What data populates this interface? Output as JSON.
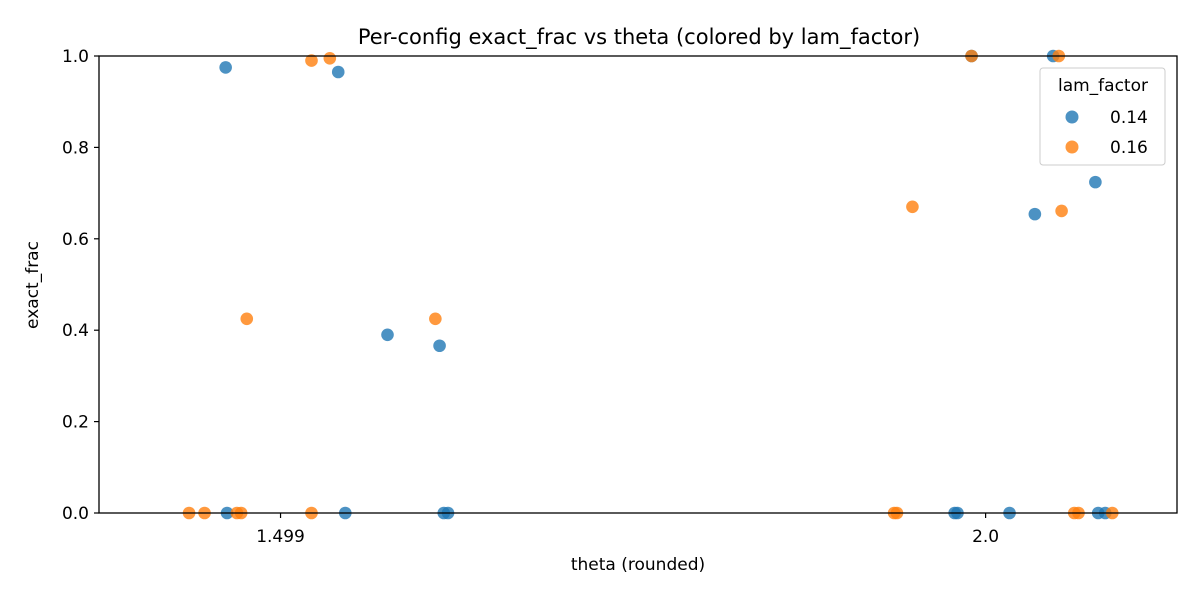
{
  "chart_data": {
    "type": "scatter",
    "title": "Per-config exact_frac vs theta (colored by lam_factor)",
    "xlabel": "theta (rounded)",
    "ylabel": "exact_frac",
    "x_tick_labels": [
      "1.499",
      "2.0"
    ],
    "y_tick_labels": [
      "0.0",
      "0.2",
      "0.4",
      "0.6",
      "0.8",
      "1.0"
    ],
    "ylim": [
      0,
      1
    ],
    "grid": false,
    "legend": {
      "title": "lam_factor",
      "location": "upper right"
    },
    "series": [
      {
        "name": "0.14",
        "color": "#1f77b4",
        "points": [
          {
            "x": 1.46,
            "y": 0.975
          },
          {
            "x": 1.54,
            "y": 0.965
          },
          {
            "x": 1.575,
            "y": 0.39
          },
          {
            "x": 1.612,
            "y": 0.366
          },
          {
            "x": 1.461,
            "y": 0.0
          },
          {
            "x": 1.545,
            "y": 0.0
          },
          {
            "x": 1.615,
            "y": 0.0
          },
          {
            "x": 1.618,
            "y": 0.0
          },
          {
            "x": 1.99,
            "y": 1.0
          },
          {
            "x": 2.048,
            "y": 1.0
          },
          {
            "x": 2.078,
            "y": 0.724
          },
          {
            "x": 2.035,
            "y": 0.654
          },
          {
            "x": 1.978,
            "y": 0.0
          },
          {
            "x": 1.98,
            "y": 0.0
          },
          {
            "x": 2.017,
            "y": 0.0
          },
          {
            "x": 2.08,
            "y": 0.0
          },
          {
            "x": 2.085,
            "y": 0.0
          }
        ]
      },
      {
        "name": "0.16",
        "color": "#ff7f0e",
        "points": [
          {
            "x": 1.521,
            "y": 0.99
          },
          {
            "x": 1.534,
            "y": 0.995
          },
          {
            "x": 1.475,
            "y": 0.425
          },
          {
            "x": 1.609,
            "y": 0.425
          },
          {
            "x": 1.434,
            "y": 0.0
          },
          {
            "x": 1.445,
            "y": 0.0
          },
          {
            "x": 1.468,
            "y": 0.0
          },
          {
            "x": 1.471,
            "y": 0.0
          },
          {
            "x": 1.521,
            "y": 0.0
          },
          {
            "x": 1.99,
            "y": 1.0
          },
          {
            "x": 2.052,
            "y": 1.0
          },
          {
            "x": 1.948,
            "y": 0.67
          },
          {
            "x": 2.054,
            "y": 0.661
          },
          {
            "x": 1.935,
            "y": 0.0
          },
          {
            "x": 1.937,
            "y": 0.0
          },
          {
            "x": 2.063,
            "y": 0.0
          },
          {
            "x": 2.066,
            "y": 0.0
          },
          {
            "x": 2.09,
            "y": 0.0
          }
        ]
      }
    ]
  }
}
